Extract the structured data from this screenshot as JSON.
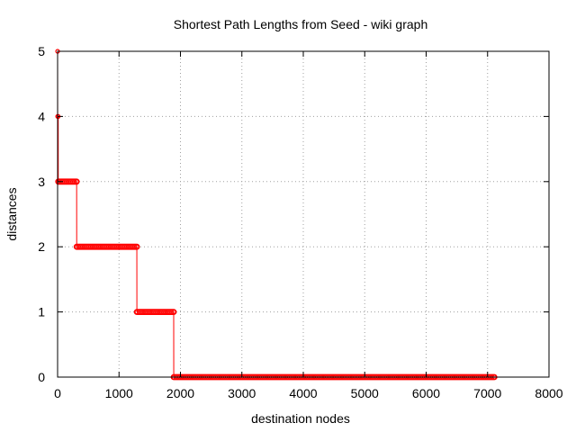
{
  "chart_data": {
    "type": "line",
    "title": "Shortest Path Lengths from Seed - wiki graph",
    "xlabel": "destination nodes",
    "ylabel": "distances",
    "xlim": [
      0,
      8000
    ],
    "ylim": [
      0,
      5
    ],
    "x_ticks": [
      "0",
      "1000",
      "2000",
      "3000",
      "4000",
      "5000",
      "6000",
      "7000",
      "8000"
    ],
    "y_ticks": [
      "0",
      "1",
      "2",
      "3",
      "4",
      "5"
    ],
    "grid": true,
    "legend": "none",
    "series": [
      {
        "color": "#ff0000",
        "marker": "circle",
        "segments": [
          {
            "distance": 5,
            "x_start": 0,
            "x_end": 0
          },
          {
            "distance": 4,
            "x_start": 1,
            "x_end": 10
          },
          {
            "distance": 3,
            "x_start": 11,
            "x_end": 310
          },
          {
            "distance": 2,
            "x_start": 311,
            "x_end": 1290
          },
          {
            "distance": 1,
            "x_start": 1291,
            "x_end": 1890
          },
          {
            "distance": 0,
            "x_start": 1891,
            "x_end": 7110
          }
        ]
      }
    ]
  }
}
